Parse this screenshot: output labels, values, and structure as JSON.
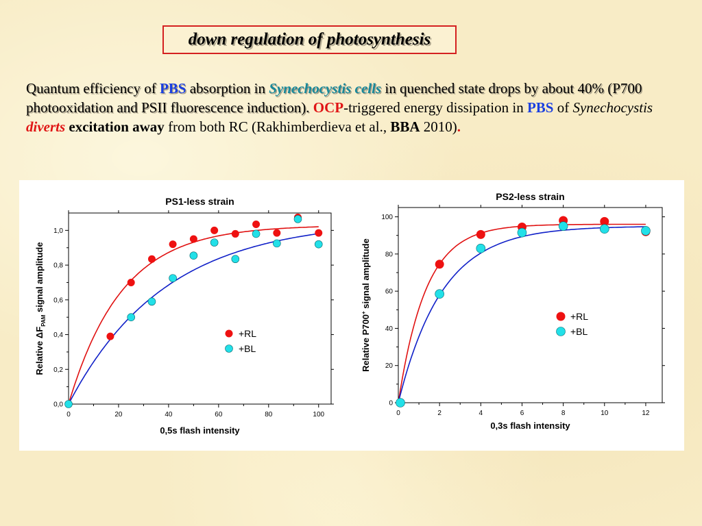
{
  "slide_title": "down regulation of photosynthesis",
  "paragraph": {
    "s1": "Quantum efficiency of ",
    "s2": "PBS",
    "s3": " absorption in ",
    "s4": "Synechocystis cells",
    "s5": " in quenched state drops by about 40% (P700 photooxidation and PSII fluorescence induction).",
    "s6": " ",
    "s7": "OCP",
    "s8": "-triggered energy dissipation in ",
    "s9": "PBS",
    "s10": " of ",
    "s11": "Synechocystis",
    "s12": " ",
    "s13": "diverts",
    "s14": " ",
    "s15": "excitation away",
    "s16": " from both RC (Rakhimberdieva et al., ",
    "s17": "BBA",
    "s18": " 2010)",
    "s19": "."
  },
  "colors": {
    "rl": "#ee1111",
    "bl": "#22e0e8",
    "rl_curve": "#e01010",
    "bl_curve": "#1020c8",
    "title_border": "#d42020",
    "pbs": "#1a3fe0",
    "cells": "#18889a"
  },
  "chart_data": [
    {
      "type": "scatter",
      "title": "PS1-less strain",
      "xlabel": "0,5s flash intensity",
      "ylabel_prefix": "Relative ",
      "ylabel_delta": "ΔF",
      "ylabel_sub": "PAM",
      "ylabel_suffix": " signal amplitude",
      "xlim": [
        0,
        105
      ],
      "ylim": [
        0,
        1.1
      ],
      "xticks": [
        0,
        20,
        40,
        60,
        80,
        100
      ],
      "yticks": [
        0,
        0.2,
        0.4,
        0.6,
        0.8,
        1.0
      ],
      "ytick_labels": [
        "0,0",
        "0,2",
        "0,4",
        "0,6",
        "0,8",
        "1,0"
      ],
      "legend_position": "center-right",
      "series": [
        {
          "name": "+RL",
          "color": "#ee1111",
          "points": [
            [
              0,
              0.0
            ],
            [
              16.7,
              0.39
            ],
            [
              25,
              0.7
            ],
            [
              33.3,
              0.835
            ],
            [
              41.7,
              0.92
            ],
            [
              50,
              0.95
            ],
            [
              58.3,
              1.0
            ],
            [
              66.7,
              0.98
            ],
            [
              75,
              1.035
            ],
            [
              83.3,
              0.985
            ],
            [
              91.7,
              1.075
            ],
            [
              100,
              0.985
            ]
          ],
          "fit": {
            "asymptote": 1.03,
            "k": 0.047
          }
        },
        {
          "name": "+BL",
          "color": "#22e0e8",
          "points": [
            [
              0,
              0.0
            ],
            [
              25,
              0.5
            ],
            [
              33.3,
              0.59
            ],
            [
              41.7,
              0.725
            ],
            [
              50,
              0.855
            ],
            [
              58.3,
              0.93
            ],
            [
              66.7,
              0.835
            ],
            [
              75,
              0.98
            ],
            [
              83.3,
              0.925
            ],
            [
              91.7,
              1.065
            ],
            [
              100,
              0.92
            ]
          ],
          "fit": {
            "asymptote": 1.06,
            "k": 0.026
          }
        }
      ]
    },
    {
      "type": "scatter",
      "title": "PS2-less strain",
      "xlabel": "0,3s flash intensity",
      "ylabel_prefix": "Relative P700",
      "ylabel_sup": "+",
      "ylabel_suffix": " signal amplitude",
      "xlim": [
        0,
        12.8
      ],
      "ylim": [
        0,
        105
      ],
      "xticks": [
        0,
        2,
        4,
        6,
        8,
        10,
        12
      ],
      "yticks": [
        0,
        20,
        40,
        60,
        80,
        100
      ],
      "ytick_labels": [
        "0",
        "20",
        "40",
        "60",
        "80",
        "100"
      ],
      "legend_position": "center-right",
      "series": [
        {
          "name": "+RL",
          "color": "#ee1111",
          "points": [
            [
              0.1,
              0
            ],
            [
              2,
              74.5
            ],
            [
              4,
              90.5
            ],
            [
              6,
              94.5
            ],
            [
              8,
              98
            ],
            [
              10,
              97.5
            ],
            [
              12,
              92
            ]
          ],
          "fit": {
            "asymptote": 96,
            "k": 0.75
          }
        },
        {
          "name": "+BL",
          "color": "#22e0e8",
          "points": [
            [
              0.1,
              0
            ],
            [
              2,
              58.5
            ],
            [
              4,
              83
            ],
            [
              6,
              91.5
            ],
            [
              8,
              95
            ],
            [
              10,
              93.5
            ],
            [
              12,
              92.5
            ]
          ],
          "fit": {
            "asymptote": 95,
            "k": 0.47
          }
        }
      ]
    }
  ]
}
